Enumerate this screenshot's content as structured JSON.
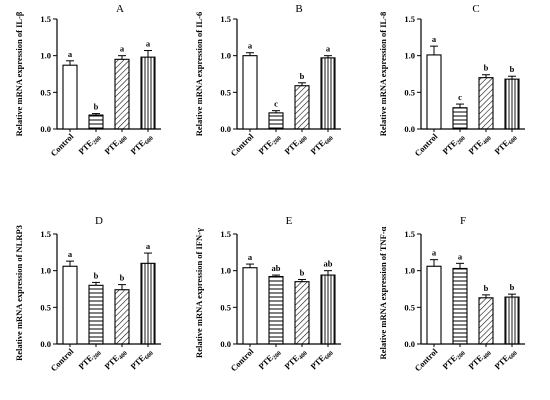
{
  "chart_data": [
    {
      "type": "bar",
      "panel": "A",
      "ylabel": "Relative mRNA expression of IL-β",
      "ylim": [
        0,
        1.5
      ],
      "yticks": [
        "0.0",
        "0.5",
        "1.0",
        "1.5"
      ],
      "categories": [
        {
          "base": "Control",
          "sub": ""
        },
        {
          "base": "PTE",
          "sub": "200"
        },
        {
          "base": "PTE",
          "sub": "400"
        },
        {
          "base": "PTE",
          "sub": "600"
        }
      ],
      "values": [
        0.87,
        0.19,
        0.95,
        0.98
      ],
      "errors": [
        0.06,
        0.02,
        0.05,
        0.09
      ],
      "letters": [
        "a",
        "b",
        "a",
        "a"
      ],
      "patterns": [
        "none",
        "hlines",
        "diag",
        "vlines"
      ]
    },
    {
      "type": "bar",
      "panel": "B",
      "ylabel": "Relative mRNA expression of IL-6",
      "ylim": [
        0,
        1.5
      ],
      "yticks": [
        "0.0",
        "0.5",
        "1.0",
        "1.5"
      ],
      "categories": [
        {
          "base": "Control",
          "sub": ""
        },
        {
          "base": "PTE",
          "sub": "200"
        },
        {
          "base": "PTE",
          "sub": "400"
        },
        {
          "base": "PTE",
          "sub": "600"
        }
      ],
      "values": [
        1.0,
        0.22,
        0.59,
        0.97
      ],
      "errors": [
        0.04,
        0.03,
        0.04,
        0.03
      ],
      "letters": [
        "a",
        "c",
        "b",
        "a"
      ],
      "patterns": [
        "none",
        "hlines",
        "diag",
        "vlines"
      ]
    },
    {
      "type": "bar",
      "panel": "C",
      "ylabel": "Relative mRNA expression of IL-8",
      "ylim": [
        0,
        1.5
      ],
      "yticks": [
        "0.0",
        "0.5",
        "1.0",
        "1.5"
      ],
      "categories": [
        {
          "base": "Control",
          "sub": ""
        },
        {
          "base": "PTE",
          "sub": "200"
        },
        {
          "base": "PTE",
          "sub": "400"
        },
        {
          "base": "PTE",
          "sub": "600"
        }
      ],
      "values": [
        1.01,
        0.29,
        0.7,
        0.68
      ],
      "errors": [
        0.12,
        0.05,
        0.04,
        0.04
      ],
      "letters": [
        "a",
        "c",
        "b",
        "b"
      ],
      "patterns": [
        "none",
        "hlines",
        "diag",
        "vlines"
      ]
    },
    {
      "type": "bar",
      "panel": "D",
      "ylabel": "Relative mRNA expression of NLRP3",
      "ylim": [
        0,
        1.5
      ],
      "yticks": [
        "0.0",
        "0.5",
        "1.0",
        "1.5"
      ],
      "categories": [
        {
          "base": "Control",
          "sub": ""
        },
        {
          "base": "PTE",
          "sub": "200"
        },
        {
          "base": "PTE",
          "sub": "400"
        },
        {
          "base": "PTE",
          "sub": "600"
        }
      ],
      "values": [
        1.06,
        0.8,
        0.74,
        1.1
      ],
      "errors": [
        0.07,
        0.04,
        0.07,
        0.14
      ],
      "letters": [
        "a",
        "b",
        "b",
        "a"
      ],
      "patterns": [
        "none",
        "hlines",
        "diag",
        "vlines"
      ]
    },
    {
      "type": "bar",
      "panel": "E",
      "ylabel": "Relative mRNA expression of IFN-γ",
      "ylim": [
        0,
        1.5
      ],
      "yticks": [
        "0.0",
        "0.5",
        "1.0",
        "1.5"
      ],
      "categories": [
        {
          "base": "Control",
          "sub": ""
        },
        {
          "base": "PTE",
          "sub": "200"
        },
        {
          "base": "PTE",
          "sub": "400"
        },
        {
          "base": "PTE",
          "sub": "600"
        }
      ],
      "values": [
        1.04,
        0.92,
        0.85,
        0.94
      ],
      "errors": [
        0.05,
        0.02,
        0.03,
        0.06
      ],
      "letters": [
        "a",
        "ab",
        "b",
        "ab"
      ],
      "patterns": [
        "none",
        "hlines",
        "diag",
        "vlines"
      ]
    },
    {
      "type": "bar",
      "panel": "F",
      "ylabel": "Relative mRNA expression of TNF-α",
      "ylim": [
        0,
        1.5
      ],
      "yticks": [
        "0.0",
        "0.5",
        "1.0",
        "1.5"
      ],
      "categories": [
        {
          "base": "Control",
          "sub": ""
        },
        {
          "base": "PTE",
          "sub": "200"
        },
        {
          "base": "PTE",
          "sub": "400"
        },
        {
          "base": "PTE",
          "sub": "600"
        }
      ],
      "values": [
        1.06,
        1.03,
        0.63,
        0.64
      ],
      "errors": [
        0.09,
        0.07,
        0.04,
        0.04
      ],
      "letters": [
        "a",
        "a",
        "b",
        "b"
      ],
      "patterns": [
        "none",
        "hlines",
        "diag",
        "vlines"
      ]
    }
  ]
}
